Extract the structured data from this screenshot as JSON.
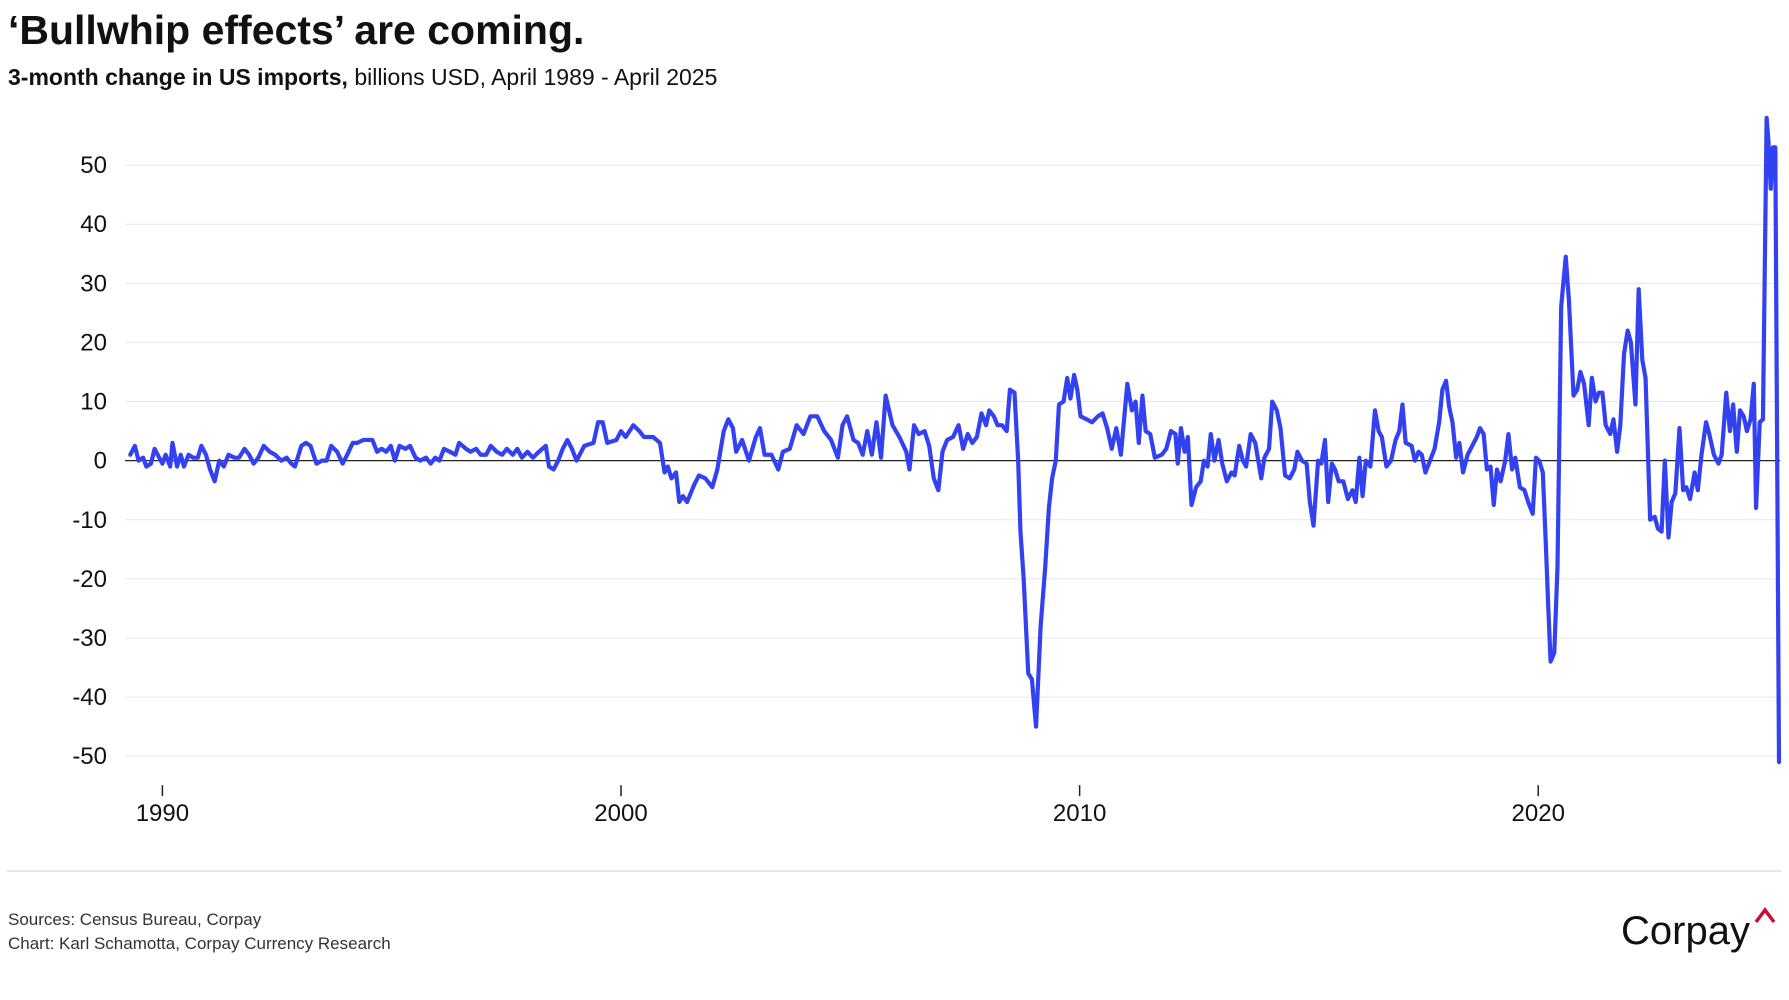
{
  "chart_data": {
    "type": "line",
    "title": "‘Bullwhip effects’ are coming.",
    "subtitle": [
      "3-month change in US imports,",
      "billions USD, April 1989 - April 2025"
    ],
    "notes": [
      "Sources: Census Bureau, Corpay",
      "Chart: Karl Schamotta, Corpay Currency Research"
    ],
    "logo": "Corpay",
    "color": "#3342f0",
    "grid": true,
    "xlim": [
      1989.25,
      2025.25
    ],
    "xticks": [
      1990,
      2000,
      2010,
      2020
    ],
    "ylim": [
      -52,
      60
    ],
    "yticks": [
      -50,
      -40,
      -30,
      -20,
      -10,
      0,
      10,
      20,
      30,
      40,
      50
    ],
    "x": [
      1989.3,
      1989.4,
      1989.48,
      1989.58,
      1989.65,
      1989.75,
      1989.83,
      1989.93,
      1990,
      1990.07,
      1990.17,
      1990.22,
      1990.32,
      1990.4,
      1990.47,
      1990.57,
      1990.67,
      1990.77,
      1990.85,
      1990.95,
      1991.04,
      1991.14,
      1991.24,
      1991.34,
      1991.44,
      1991.57,
      1991.67,
      1991.79,
      1991.89,
      1991.99,
      1992.09,
      1992.21,
      1992.34,
      1992.46,
      1992.59,
      1992.71,
      1992.81,
      1992.89,
      1993.03,
      1993.13,
      1993.23,
      1993.36,
      1993.48,
      1993.58,
      1993.68,
      1993.81,
      1993.93,
      1994.03,
      1994.15,
      1994.25,
      1994.38,
      1994.48,
      1994.58,
      1994.68,
      1994.78,
      1994.88,
      1994.98,
      1995.07,
      1995.17,
      1995.3,
      1995.4,
      1995.52,
      1995.62,
      1995.75,
      1995.85,
      1995.95,
      1996.04,
      1996.14,
      1996.27,
      1996.39,
      1996.47,
      1996.62,
      1996.72,
      1996.84,
      1996.94,
      1997.06,
      1997.16,
      1997.29,
      1997.41,
      1997.51,
      1997.64,
      1997.74,
      1997.84,
      1997.96,
      1998.08,
      1998.21,
      1998.36,
      1998.43,
      1998.53,
      1998.63,
      1998.73,
      1998.83,
      1998.93,
      1999.03,
      1999.2,
      1999.4,
      1999.5,
      1999.6,
      1999.7,
      1999.9,
      2000,
      2000.1,
      2000.27,
      2000.4,
      2000.5,
      2000.7,
      2000.85,
      2000.95,
      2001.02,
      2001.1,
      2001.2,
      2001.27,
      2001.35,
      2001.44,
      2001.6,
      2001.7,
      2001.84,
      2001.99,
      2002.1,
      2002.24,
      2002.34,
      2002.44,
      2002.51,
      2002.64,
      2002.79,
      2002.94,
      2003.03,
      2003.13,
      2003.28,
      2003.43,
      2003.53,
      2003.68,
      2003.83,
      2003.98,
      2004.13,
      2004.28,
      2004.43,
      2004.58,
      2004.73,
      2004.83,
      2004.93,
      2005.07,
      2005.17,
      2005.27,
      2005.37,
      2005.47,
      2005.57,
      2005.67,
      2005.77,
      2005.92,
      2006.07,
      2006.22,
      2006.29,
      2006.39,
      2006.49,
      2006.62,
      2006.72,
      2006.82,
      2006.92,
      2007.01,
      2007.11,
      2007.24,
      2007.36,
      2007.46,
      2007.56,
      2007.66,
      2007.76,
      2007.86,
      2007.96,
      2008.03,
      2008.13,
      2008.21,
      2008.31,
      2008.41,
      2008.48,
      2008.58,
      2008.66,
      2008.71,
      2008.78,
      2008.88,
      2008.96,
      2009.05,
      2009.15,
      2009.25,
      2009.33,
      2009.4,
      2009.48,
      2009.55,
      2009.65,
      2009.73,
      2009.8,
      2009.88,
      2009.95,
      2010.02,
      2010.15,
      2010.27,
      2010.4,
      2010.5,
      2010.6,
      2010.7,
      2010.8,
      2010.9,
      2011.04,
      2011.14,
      2011.22,
      2011.29,
      2011.37,
      2011.44,
      2011.54,
      2011.64,
      2011.79,
      2011.89,
      2011.99,
      2012.09,
      2012.14,
      2012.21,
      2012.29,
      2012.36,
      2012.44,
      2012.54,
      2012.64,
      2012.71,
      2012.79,
      2012.86,
      2012.94,
      2013.03,
      2013.11,
      2013.21,
      2013.31,
      2013.38,
      2013.48,
      2013.56,
      2013.63,
      2013.73,
      2013.83,
      2013.96,
      2014.03,
      2014.13,
      2014.2,
      2014.3,
      2014.38,
      2014.48,
      2014.58,
      2014.68,
      2014.75,
      2014.85,
      2014.95,
      2015.02,
      2015.1,
      2015.2,
      2015.27,
      2015.35,
      2015.42,
      2015.5,
      2015.57,
      2015.65,
      2015.75,
      2015.85,
      2015.95,
      2016.02,
      2016.1,
      2016.17,
      2016.24,
      2016.34,
      2016.44,
      2016.52,
      2016.59,
      2016.69,
      2016.79,
      2016.89,
      2016.97,
      2017.04,
      2017.11,
      2017.24,
      2017.31,
      2017.39,
      2017.46,
      2017.54,
      2017.64,
      2017.74,
      2017.84,
      2017.91,
      2017.99,
      2018.06,
      2018.13,
      2018.21,
      2018.28,
      2018.36,
      2018.46,
      2018.56,
      2018.66,
      2018.73,
      2018.81,
      2018.88,
      2018.96,
      2019.03,
      2019.1,
      2019.18,
      2019.28,
      2019.35,
      2019.43,
      2019.5,
      2019.6,
      2019.7,
      2019.78,
      2019.88,
      2019.95,
      2020.02,
      2020.1,
      2020.17,
      2020.22,
      2020.27,
      2020.35,
      2020.42,
      2020.5,
      2020.6,
      2020.67,
      2020.77,
      2020.85,
      2020.92,
      2021,
      2021.1,
      2021.17,
      2021.25,
      2021.32,
      2021.4,
      2021.47,
      2021.57,
      2021.64,
      2021.72,
      2021.79,
      2021.87,
      2021.95,
      2022.02,
      2022.12,
      2022.19,
      2022.27,
      2022.34,
      2022.44,
      2022.54,
      2022.61,
      2022.69,
      2022.76,
      2022.84,
      2022.91,
      2022.99,
      2023.08,
      2023.16,
      2023.23,
      2023.31,
      2023.41,
      2023.48,
      2023.56,
      2023.66,
      2023.73,
      2023.83,
      2023.93,
      2024,
      2024.1,
      2024.18,
      2024.25,
      2024.33,
      2024.4,
      2024.48,
      2024.55,
      2024.63,
      2024.7,
      2024.75,
      2024.83,
      2024.9,
      2024.98,
      2025.02,
      2025.07,
      2025.12,
      2025.17,
      2025.25
    ],
    "values": [
      1,
      2.5,
      0,
      0.5,
      -1,
      -0.5,
      2,
      0.5,
      -0.5,
      1,
      -1,
      3,
      -1,
      1,
      -1,
      1,
      0.5,
      0.5,
      2.5,
      1,
      -1.5,
      -3.5,
      0,
      -1,
      1,
      0.5,
      0.5,
      2,
      1,
      -0.5,
      0.5,
      2.5,
      1.5,
      1,
      0,
      0.5,
      -0.5,
      -1,
      2.5,
      3,
      2.5,
      -0.5,
      0,
      0,
      2.5,
      1.5,
      -0.5,
      1,
      3,
      3,
      3.5,
      3.5,
      3.5,
      1.5,
      2,
      1.5,
      2.5,
      0,
      2.5,
      2,
      2.5,
      0.5,
      0,
      0.5,
      -0.5,
      0.5,
      0,
      2,
      1.5,
      1,
      3,
      2,
      1.5,
      2,
      1,
      1,
      2.5,
      1.5,
      1,
      2,
      1,
      2,
      0.5,
      1.5,
      0.5,
      1.5,
      2.5,
      -1,
      -1.5,
      0,
      2,
      3.5,
      2,
      0,
      2.5,
      3,
      6.5,
      6.5,
      3,
      3.5,
      5,
      4,
      6,
      5,
      4,
      4,
      3,
      -2,
      -1,
      -3,
      -2,
      -7,
      -6,
      -7,
      -4,
      -2.5,
      -3,
      -4.5,
      -1.5,
      5,
      7,
      5.5,
      1.5,
      3.5,
      0,
      4,
      5.5,
      1,
      1,
      -1.5,
      1.5,
      2,
      6,
      4.5,
      7.5,
      7.5,
      5,
      3.5,
      0.5,
      6,
      7.5,
      3.5,
      3,
      1,
      5,
      1,
      6.5,
      0.5,
      11,
      6,
      4,
      1.5,
      -1.5,
      6,
      4.5,
      5,
      2.5,
      -3,
      -5,
      1.5,
      3.5,
      4,
      6,
      2,
      4.5,
      3,
      4,
      8,
      6,
      8.5,
      7.5,
      6,
      6,
      5,
      12,
      11.5,
      0,
      -12,
      -20,
      -36,
      -37,
      -45,
      -28,
      -18,
      -8,
      -3,
      0,
      9.5,
      10,
      14,
      10.5,
      14.5,
      12,
      7.5,
      7,
      6.5,
      7.5,
      8,
      5.5,
      2,
      5.5,
      1,
      13,
      8.5,
      10,
      3,
      11,
      5,
      4.5,
      0.5,
      1,
      2,
      5,
      4.5,
      -0.5,
      5.5,
      1.5,
      4,
      -7.5,
      -4.5,
      -3.5,
      0,
      -1,
      4.5,
      0,
      3.5,
      -0.5,
      -3.5,
      -2,
      -2.5,
      2.5,
      0,
      -1,
      4.5,
      3,
      -3,
      0.5,
      2,
      10,
      8.5,
      5.5,
      -2.5,
      -3,
      -1.5,
      1.5,
      0,
      -0.5,
      -7,
      -11,
      0,
      -0.5,
      3.5,
      -7,
      -0.5,
      -1.5,
      -3.5,
      -3.5,
      -6.5,
      -5,
      -7,
      0.5,
      -6,
      0,
      -1,
      8.5,
      5,
      4,
      -1,
      0,
      3.5,
      5,
      9.5,
      3,
      2.5,
      0,
      1.5,
      1,
      -2,
      0,
      2,
      6.5,
      12,
      13.5,
      9,
      6.5,
      0.5,
      3,
      -2,
      1,
      2.5,
      4,
      5.5,
      4.5,
      -1.5,
      -1,
      -7.5,
      -1.5,
      -3.5,
      0,
      4.5,
      -1.5,
      0.5,
      -4.5,
      -5,
      -7,
      -9,
      0.5,
      0,
      -2,
      -15,
      -25,
      -34,
      -32.5,
      -18,
      26,
      34.5,
      27,
      11,
      12,
      15,
      13,
      6,
      14,
      10,
      11.5,
      11.5,
      6,
      4.5,
      7,
      1.5,
      6,
      18,
      22,
      20,
      9.5,
      29,
      17,
      14,
      -10,
      -9.5,
      -11.5,
      -12,
      0,
      -13,
      -7,
      -5.5,
      5.5,
      -5,
      -4.5,
      -6.5,
      -2,
      -5,
      1,
      6.5,
      4.5,
      1,
      -0.5,
      1,
      11.5,
      5,
      9.5,
      1.5,
      8.5,
      7.5,
      5,
      7,
      13,
      -8,
      6.5,
      7,
      58,
      54,
      46,
      53,
      53,
      -51
    ]
  }
}
